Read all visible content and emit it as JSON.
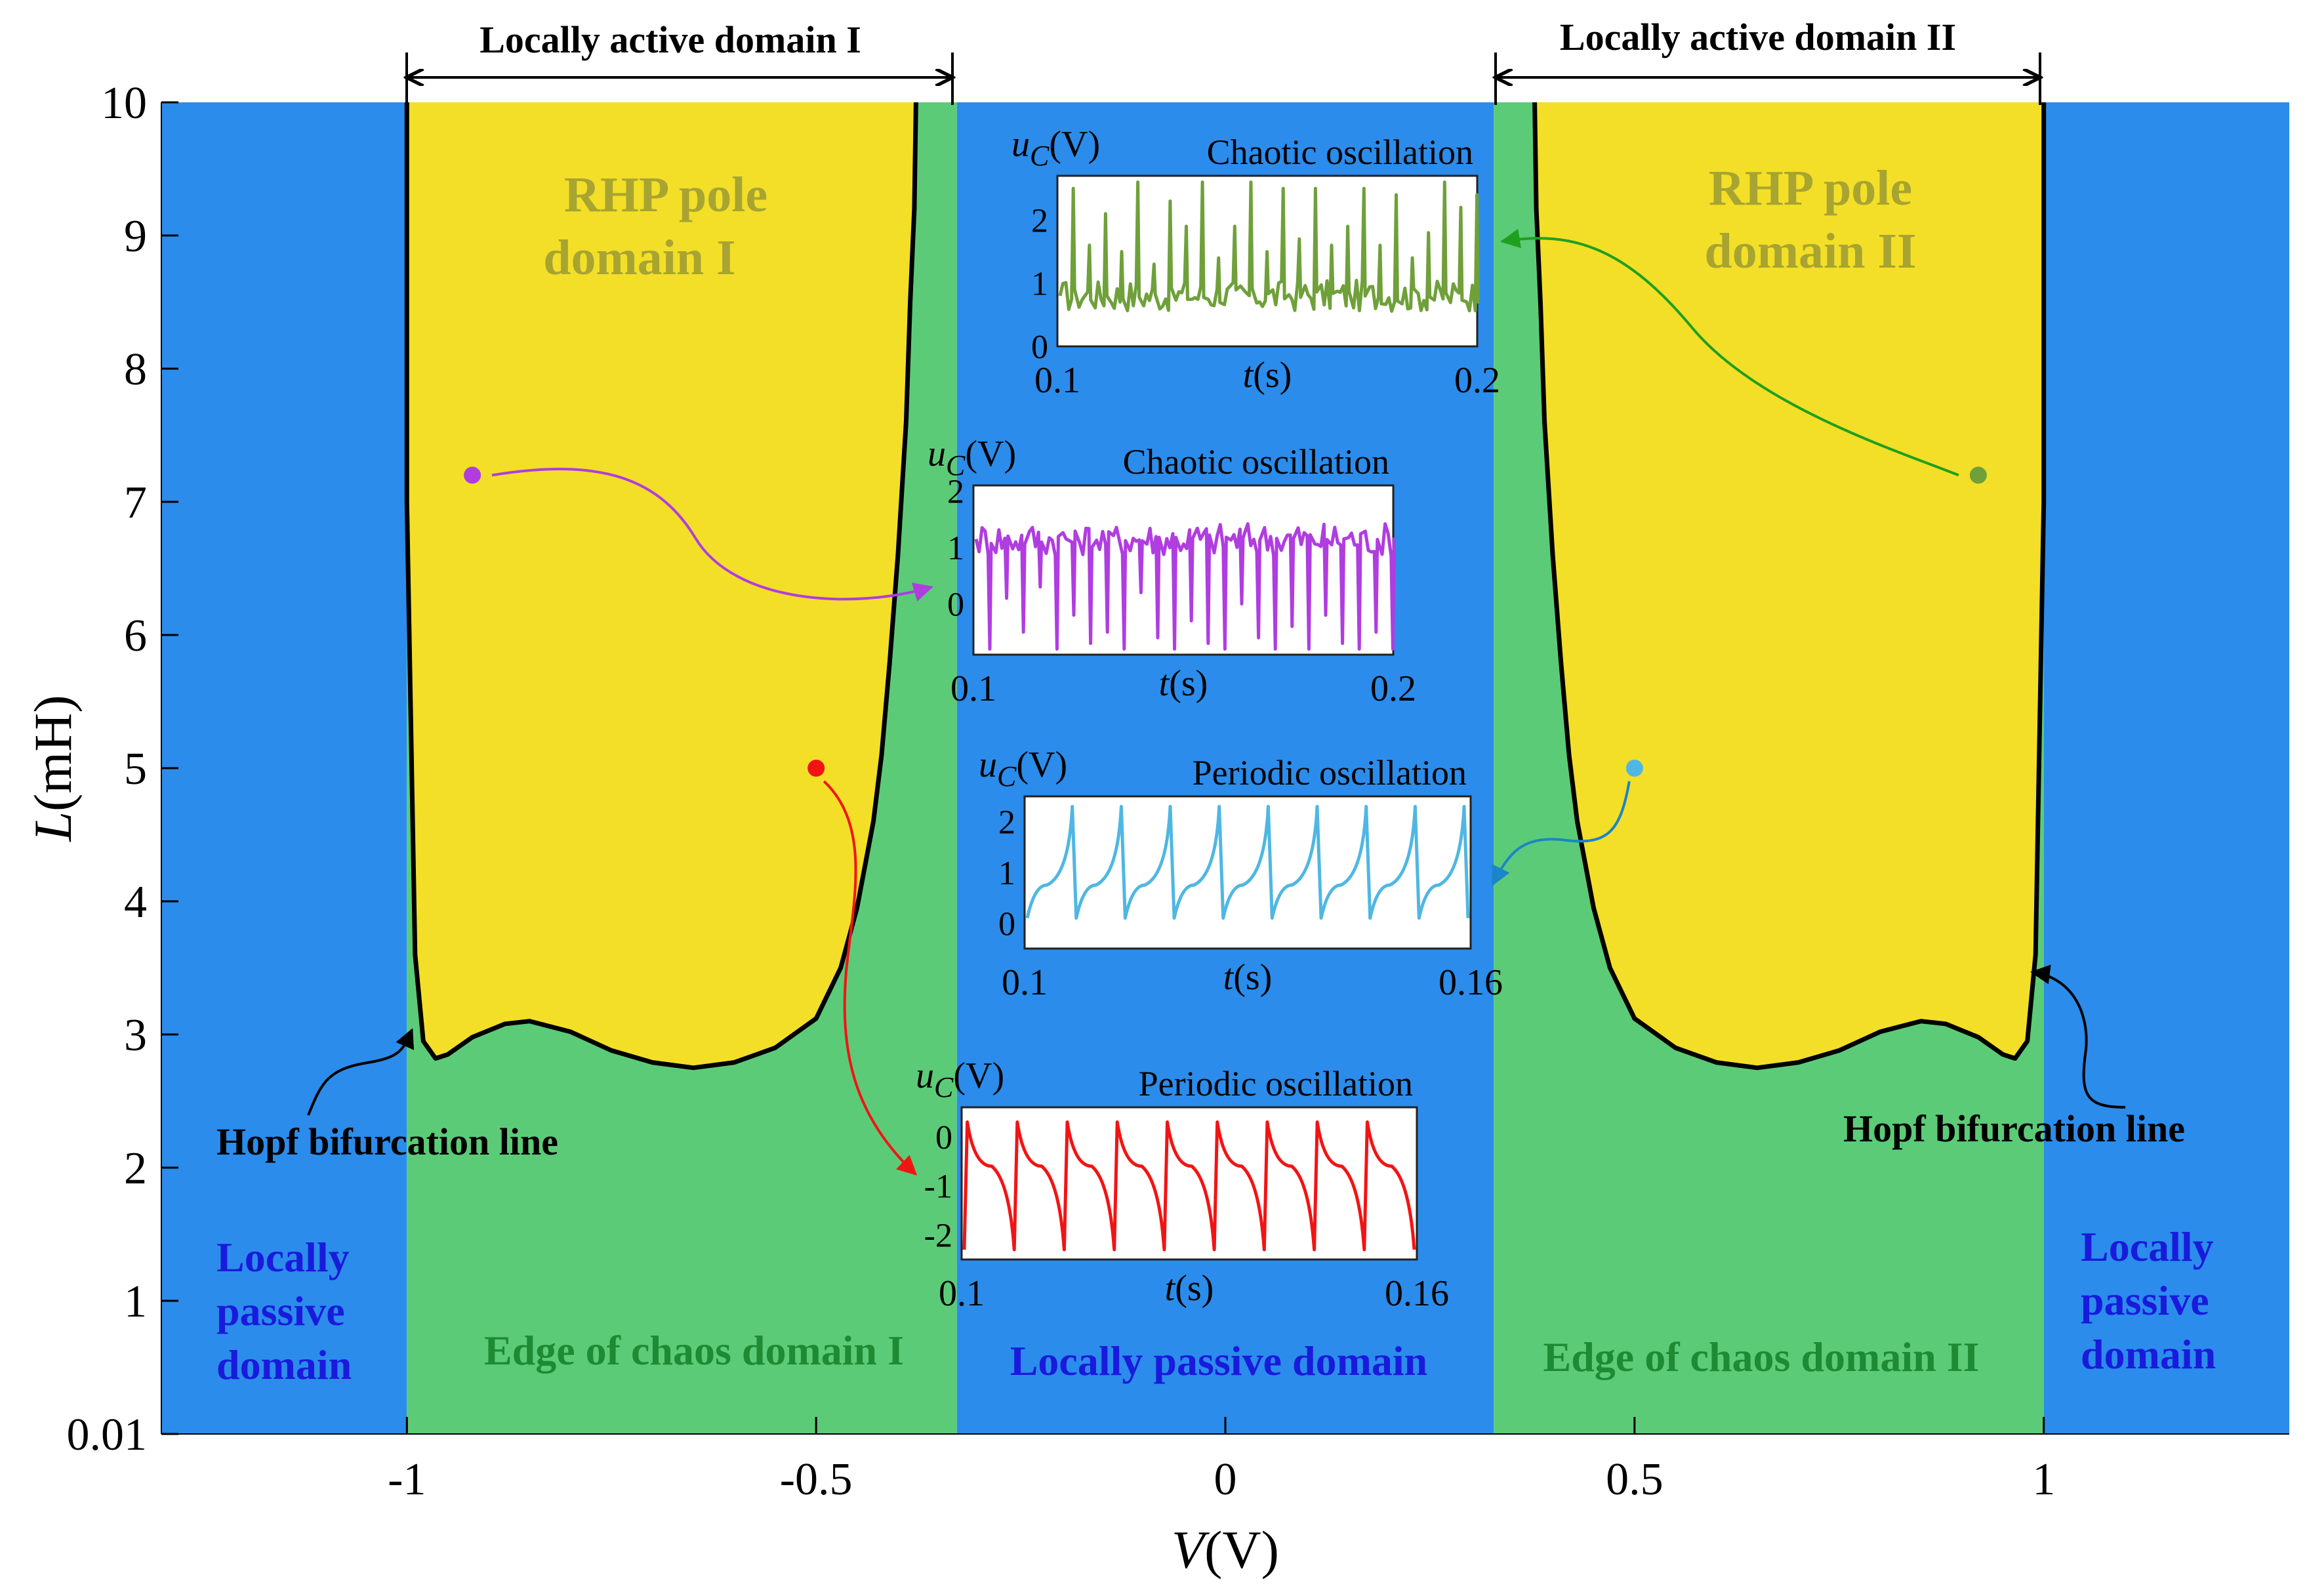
{
  "chart_data": {
    "type": "region-map",
    "xlabel_var": "V",
    "xlabel_unit": "(V)",
    "ylabel_var": "L",
    "ylabel_unit": "(mH)",
    "xlim": [
      -1.3,
      1.3
    ],
    "ylim": [
      0,
      10
    ],
    "x_ticks": [
      {
        "value": -1,
        "label": "-1"
      },
      {
        "value": -0.5,
        "label": "-0.5"
      },
      {
        "value": 0,
        "label": "0"
      },
      {
        "value": 0.5,
        "label": "0.5"
      },
      {
        "value": 1,
        "label": "1"
      }
    ],
    "y_ticks": [
      {
        "value": 0,
        "label": "0.01"
      },
      {
        "value": 1,
        "label": "1"
      },
      {
        "value": 2,
        "label": "2"
      },
      {
        "value": 3,
        "label": "3"
      },
      {
        "value": 4,
        "label": "4"
      },
      {
        "value": 5,
        "label": "5"
      },
      {
        "value": 6,
        "label": "6"
      },
      {
        "value": 7,
        "label": "7"
      },
      {
        "value": 8,
        "label": "8"
      },
      {
        "value": 9,
        "label": "9"
      },
      {
        "value": 10,
        "label": "10"
      }
    ],
    "colors": {
      "passive": "#2b8ceb",
      "edge": "#5ccb78",
      "rhp": "#f3df27",
      "boundary": "#000000",
      "rhp_label": "#a8a432",
      "edge_label": "#1e8a34",
      "passive_label": "#1a1adc"
    },
    "regions": [
      {
        "name": "Locally passive domain",
        "v_from": -1.3,
        "v_to": -1.0,
        "color": "passive"
      },
      {
        "name": "Edge of chaos domain I",
        "v_from": -1.0,
        "v_to": -0.328,
        "color": "edge"
      },
      {
        "name": "Locally passive domain",
        "v_from": -0.328,
        "v_to": 0.328,
        "color": "passive"
      },
      {
        "name": "Edge of chaos domain II",
        "v_from": 0.328,
        "v_to": 1.0,
        "color": "edge"
      },
      {
        "name": "Locally passive domain",
        "v_from": 1.0,
        "v_to": 1.3,
        "color": "passive"
      }
    ],
    "hopf_boundary": [
      {
        "v": -1.0,
        "L": 10.0
      },
      {
        "v": -1.0,
        "L": 7.0
      },
      {
        "v": -0.99,
        "L": 3.6
      },
      {
        "v": -0.98,
        "L": 2.95
      },
      {
        "v": -0.965,
        "L": 2.82
      },
      {
        "v": -0.95,
        "L": 2.85
      },
      {
        "v": -0.92,
        "L": 2.98
      },
      {
        "v": -0.88,
        "L": 3.08
      },
      {
        "v": -0.85,
        "L": 3.1
      },
      {
        "v": -0.8,
        "L": 3.02
      },
      {
        "v": -0.75,
        "L": 2.88
      },
      {
        "v": -0.7,
        "L": 2.79
      },
      {
        "v": -0.65,
        "L": 2.75
      },
      {
        "v": -0.6,
        "L": 2.79
      },
      {
        "v": -0.55,
        "L": 2.9
      },
      {
        "v": -0.5,
        "L": 3.12
      },
      {
        "v": -0.47,
        "L": 3.5
      },
      {
        "v": -0.45,
        "L": 3.95
      },
      {
        "v": -0.43,
        "L": 4.6
      },
      {
        "v": -0.42,
        "L": 5.1
      },
      {
        "v": -0.41,
        "L": 5.8
      },
      {
        "v": -0.4,
        "L": 6.6
      },
      {
        "v": -0.39,
        "L": 7.6
      },
      {
        "v": -0.385,
        "L": 8.5
      },
      {
        "v": -0.38,
        "L": 9.2
      },
      {
        "v": -0.378,
        "L": 10.0
      }
    ],
    "boundary_symmetry": "mirror about V = 0",
    "domain_labels": {
      "rhp_1_line1": "RHP pole",
      "rhp_1_line2": "domain I",
      "rhp_2_line1": "RHP pole",
      "rhp_2_line2": "domain II",
      "edge_1": "Edge of chaos domain I",
      "edge_2": "Edge of chaos domain II",
      "passive_center": "Locally passive domain",
      "passive_left_1": "Locally",
      "passive_left_2": "passive",
      "passive_left_3": "domain",
      "passive_right_1": "Locally",
      "passive_right_2": "passive",
      "passive_right_3": "domain",
      "active_1": "Locally active domain I",
      "active_2": "Locally active domain II",
      "hopf_left": "Hopf bifurcation line",
      "hopf_right": "Hopf bifurcation line"
    },
    "sample_points": [
      {
        "v": -0.92,
        "L": 7.2,
        "color": "#b03de0",
        "inset": 1
      },
      {
        "v": -0.5,
        "L": 5.0,
        "color": "#f21414",
        "inset": 3
      },
      {
        "v": 0.92,
        "L": 7.2,
        "color": "#6fa03a",
        "inset": 0
      },
      {
        "v": 0.5,
        "L": 5.0,
        "color": "#4fb7e3",
        "inset": 2
      }
    ],
    "insets": [
      {
        "title": "Chaotic oscillation",
        "ylabel_var": "u",
        "ylabel_sub": "C",
        "ylabel_unit": "(V)",
        "xlabel_var": "t",
        "xlabel_unit": "(s)",
        "x_ticks": [
          "0.1",
          "0.2"
        ],
        "y_ticks": [
          {
            "value": 0,
            "label": "0"
          },
          {
            "value": 1,
            "label": "1"
          },
          {
            "value": 2,
            "label": "2"
          }
        ],
        "ylim": [
          0,
          2.7
        ],
        "color": "#6fa03a",
        "kind": "chaotic_spikes_up",
        "baseline": 0.8,
        "noise": 0.25,
        "spike_peaks": [
          2.5,
          1.6,
          2.1,
          1.5,
          2.6,
          1.3,
          2.3,
          1.9,
          2.6,
          1.4,
          1.9,
          2.6,
          1.5,
          2.5,
          1.7,
          2.5,
          1.6,
          1.9,
          2.5,
          1.6,
          2.4,
          1.4,
          1.8,
          2.6,
          2.2,
          2.4
        ]
      },
      {
        "title": "Chaotic oscillation",
        "ylabel_var": "u",
        "ylabel_sub": "C",
        "ylabel_unit": "(V)",
        "xlabel_var": "t",
        "xlabel_unit": "(s)",
        "x_ticks": [
          "0.1",
          "0.2"
        ],
        "y_ticks": [
          {
            "value": 0,
            "label": "0"
          },
          {
            "value": 1,
            "label": "1"
          },
          {
            "value": 2,
            "label": "2"
          }
        ],
        "ylim": [
          -0.9,
          2.1
        ],
        "color": "#b03de0",
        "kind": "chaotic_spikes_down",
        "baseline": 1.15,
        "noise": 0.3,
        "spike_troughs": [
          -0.8,
          0.1,
          -0.5,
          0.3,
          -0.8,
          -0.2,
          -0.7,
          -0.5,
          -0.8,
          0.2,
          -0.6,
          -0.8,
          -0.3,
          -0.7,
          -0.8,
          0.0,
          -0.6,
          -0.8,
          -0.4,
          -0.8,
          -0.2,
          -0.7,
          -0.8,
          -0.5,
          -0.8
        ]
      },
      {
        "title": "Periodic oscillation",
        "ylabel_var": "u",
        "ylabel_sub": "C",
        "ylabel_unit": "(V)",
        "xlabel_var": "t",
        "xlabel_unit": "(s)",
        "x_ticks": [
          "0.1",
          "0.16"
        ],
        "y_ticks": [
          {
            "value": 0,
            "label": "0"
          },
          {
            "value": 1,
            "label": "1"
          },
          {
            "value": 2,
            "label": "2"
          }
        ],
        "ylim": [
          -0.5,
          2.5
        ],
        "color": "#4fb7e3",
        "kind": "periodic_up",
        "periods": 9,
        "base": 0.1,
        "plateau": 0.75,
        "peak": 2.3
      },
      {
        "title": "Periodic oscillation",
        "ylabel_var": "u",
        "ylabel_sub": "C",
        "ylabel_unit": "(V)",
        "xlabel_var": "t",
        "xlabel_unit": "(s)",
        "x_ticks": [
          "0.1",
          "0.16"
        ],
        "y_ticks": [
          {
            "value": 0,
            "label": "0"
          },
          {
            "value": -1,
            "label": "-1"
          },
          {
            "value": -2,
            "label": "-2"
          }
        ],
        "ylim": [
          -2.5,
          0.6
        ],
        "color": "#f21414",
        "kind": "periodic_down",
        "periods": 9,
        "top": 0.3,
        "plateau": -0.6,
        "trough": -2.3
      }
    ]
  }
}
